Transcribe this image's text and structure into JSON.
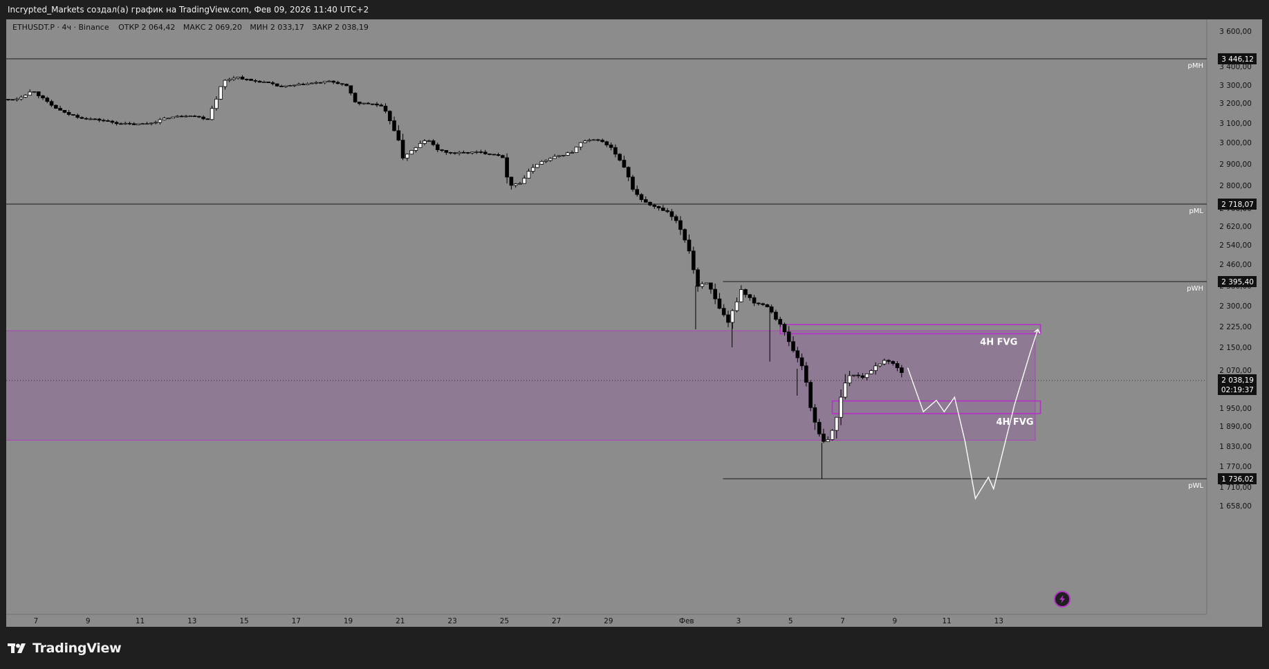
{
  "header": {
    "title": "Incrypted_Markets создал(а) график на TradingView.com, Фев 09, 2026 11:40 UTC+2"
  },
  "legend": {
    "symbol": "ETHUSDT.P",
    "interval": "4ч",
    "exchange": "Binance",
    "open_label": "ОТКР",
    "open": "2 064,42",
    "high_label": "МАКС",
    "high": "2 069,20",
    "low_label": "МИН",
    "low": "2 033,17",
    "close_label": "ЗАКР",
    "close": "2 038,19"
  },
  "colors": {
    "background": "#1f1f1f",
    "chart_bg": "#8c8c8c",
    "fvg_zone": "#8e7a93",
    "fvg_border": "#b530c7",
    "up_candle": "#ffffff",
    "down_candle": "#000000",
    "projection": "#ffffff",
    "lightning_badge": "#7a2e8c"
  },
  "chart_data": {
    "type": "candlestick",
    "title": "",
    "xlabel": "",
    "ylabel": "",
    "ylim": [
      1605,
      3680
    ],
    "y_ticks": [
      {
        "value": 3600,
        "label": "3 600,00"
      },
      {
        "value": 3400,
        "label": "3 400,00"
      },
      {
        "value": 3300,
        "label": "3 300,00"
      },
      {
        "value": 3200,
        "label": "3 200,00"
      },
      {
        "value": 3100,
        "label": "3 100,00"
      },
      {
        "value": 3000,
        "label": "3 000,00"
      },
      {
        "value": 2900,
        "label": "2 900,00"
      },
      {
        "value": 2800,
        "label": "2 800,00"
      },
      {
        "value": 2700,
        "label": "2 700,00"
      },
      {
        "value": 2620,
        "label": "2 620,00"
      },
      {
        "value": 2540,
        "label": "2 540,00"
      },
      {
        "value": 2460,
        "label": "2 460,00"
      },
      {
        "value": 2380,
        "label": "2 380,00"
      },
      {
        "value": 2300,
        "label": "2 300,00"
      },
      {
        "value": 2225,
        "label": "2 225,00"
      },
      {
        "value": 2150,
        "label": "2 150,00"
      },
      {
        "value": 2070,
        "label": "2 070,00"
      },
      {
        "value": 1950,
        "label": "1 950,00"
      },
      {
        "value": 1890,
        "label": "1 890,00"
      },
      {
        "value": 1830,
        "label": "1 830,00"
      },
      {
        "value": 1770,
        "label": "1 770,00"
      },
      {
        "value": 1710,
        "label": "1 710,00"
      },
      {
        "value": 1658,
        "label": "1 658,00"
      }
    ],
    "x_ticks": [
      {
        "day": 7,
        "label": "7"
      },
      {
        "day": 9,
        "label": "9"
      },
      {
        "day": 11,
        "label": "11"
      },
      {
        "day": 13,
        "label": "13"
      },
      {
        "day": 15,
        "label": "15"
      },
      {
        "day": 17,
        "label": "17"
      },
      {
        "day": 19,
        "label": "19"
      },
      {
        "day": 21,
        "label": "21"
      },
      {
        "day": 23,
        "label": "23"
      },
      {
        "day": 25,
        "label": "25"
      },
      {
        "day": 27,
        "label": "27"
      },
      {
        "day": 29,
        "label": "29"
      },
      {
        "day": 32,
        "label": "Фев"
      },
      {
        "day": 34,
        "label": "3"
      },
      {
        "day": 36,
        "label": "5"
      },
      {
        "day": 38,
        "label": "7"
      },
      {
        "day": 40,
        "label": "9"
      },
      {
        "day": 42,
        "label": "11"
      },
      {
        "day": 44,
        "label": "13"
      }
    ],
    "x_range": [
      5.6,
      45.9
    ],
    "levels": [
      {
        "name": "pMH",
        "value": 3446.12,
        "price_label": "3 446,12",
        "from_day": 5.6
      },
      {
        "name": "pML",
        "value": 2718.07,
        "price_label": "2 718,07",
        "from_day": 5.6
      },
      {
        "name": "pWH",
        "value": 2395.4,
        "price_label": "2 395,40",
        "from_day": 33.4
      },
      {
        "name": "pWL",
        "value": 1736.02,
        "price_label": "1 736,02",
        "from_day": 33.4
      }
    ],
    "current_price": {
      "value": 2038.19,
      "label": "2 038,19",
      "countdown": "02:19:37"
    },
    "zones": [
      {
        "from_day": 5.6,
        "to_day": 45.4,
        "top": 2210,
        "bottom": 1848,
        "label": ""
      },
      {
        "from_day": 35.6,
        "to_day": 45.6,
        "top": 2232,
        "bottom": 2199,
        "label": "4H FVG"
      },
      {
        "from_day": 37.6,
        "to_day": 45.6,
        "top": 1973,
        "bottom": 1932,
        "label": "4H FVG"
      }
    ],
    "projection": [
      [
        40.5,
        2078
      ],
      [
        41.1,
        1938
      ],
      [
        41.6,
        1975
      ],
      [
        41.9,
        1938
      ],
      [
        42.3,
        1985
      ],
      [
        42.7,
        1845
      ],
      [
        43.1,
        1678
      ],
      [
        43.6,
        1740
      ],
      [
        43.8,
        1705
      ],
      [
        44.6,
        1960
      ],
      [
        45.2,
        2130
      ],
      [
        45.5,
        2215
      ]
    ],
    "anchors": [
      [
        5.6,
        3220
      ],
      [
        6.2,
        3220
      ],
      [
        6.9,
        3270
      ],
      [
        7.5,
        3195
      ],
      [
        8.1,
        3150
      ],
      [
        8.8,
        3125
      ],
      [
        9.5,
        3115
      ],
      [
        10.1,
        3100
      ],
      [
        10.8,
        3093
      ],
      [
        11.4,
        3100
      ],
      [
        12.1,
        3128
      ],
      [
        12.9,
        3140
      ],
      [
        13.6,
        3120
      ],
      [
        14.2,
        3320
      ],
      [
        14.7,
        3345
      ],
      [
        15.2,
        3325
      ],
      [
        15.8,
        3315
      ],
      [
        16.4,
        3290
      ],
      [
        17.0,
        3300
      ],
      [
        17.6,
        3310
      ],
      [
        18.3,
        3320
      ],
      [
        18.9,
        3300
      ],
      [
        19.3,
        3200
      ],
      [
        20.0,
        3195
      ],
      [
        20.3,
        3180
      ],
      [
        20.7,
        3095
      ],
      [
        21.1,
        2935
      ],
      [
        21.6,
        2975
      ],
      [
        22.0,
        3018
      ],
      [
        22.5,
        2962
      ],
      [
        23.0,
        2950
      ],
      [
        24.0,
        2955
      ],
      [
        24.9,
        2940
      ],
      [
        25.2,
        2805
      ],
      [
        25.6,
        2810
      ],
      [
        26.2,
        2900
      ],
      [
        27.0,
        2935
      ],
      [
        27.6,
        2955
      ],
      [
        28.0,
        3005
      ],
      [
        28.6,
        3015
      ],
      [
        29.1,
        2975
      ],
      [
        29.6,
        2880
      ],
      [
        30.0,
        2770
      ],
      [
        30.4,
        2725
      ],
      [
        30.9,
        2700
      ],
      [
        31.3,
        2680
      ],
      [
        31.7,
        2625
      ],
      [
        32.1,
        2520
      ],
      [
        32.4,
        2380
      ],
      [
        32.8,
        2395
      ],
      [
        33.2,
        2295
      ],
      [
        33.6,
        2235
      ],
      [
        34.1,
        2365
      ],
      [
        34.6,
        2315
      ],
      [
        35.1,
        2300
      ],
      [
        35.6,
        2235
      ],
      [
        36.0,
        2155
      ],
      [
        36.5,
        2075
      ],
      [
        36.9,
        1905
      ],
      [
        37.2,
        1840
      ],
      [
        37.5,
        1850
      ],
      [
        37.8,
        1930
      ],
      [
        38.1,
        2040
      ],
      [
        38.4,
        2060
      ],
      [
        38.8,
        2045
      ],
      [
        39.2,
        2080
      ],
      [
        39.6,
        2105
      ],
      [
        40.0,
        2090
      ],
      [
        40.3,
        2060
      ],
      [
        40.35,
        2038
      ]
    ],
    "candle_note": "4h candles between anchors approximate the visible price path"
  }
}
